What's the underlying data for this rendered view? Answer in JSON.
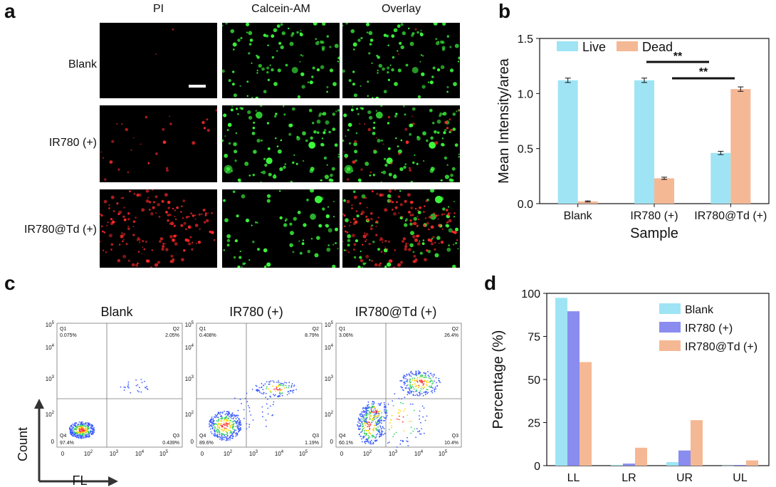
{
  "panel_labels": {
    "a": "a",
    "b": "b",
    "c": "c",
    "d": "d"
  },
  "panel_a": {
    "columns": [
      "PI",
      "Calcein-AM",
      "Overlay"
    ],
    "rows": [
      "Blank",
      "IR780 (+)",
      "IR780@Td (+)"
    ]
  },
  "colors": {
    "live": "#9ee4f5",
    "dead": "#f5b894",
    "blank": "#9ee4f5",
    "ir780": "#8a8cf0",
    "ir780td": "#f5b894",
    "green": "#3dff3d",
    "red": "#ff2a2a"
  },
  "chart_data": [
    {
      "id": "b",
      "type": "bar",
      "categories": [
        "Blank",
        "IR780 (+)",
        "IR780@Td (+)"
      ],
      "series": [
        {
          "name": "Live",
          "values": [
            1.12,
            1.12,
            0.46
          ],
          "errors": [
            0.02,
            0.02,
            0.015
          ]
        },
        {
          "name": "Dead",
          "values": [
            0.02,
            0.23,
            1.04
          ],
          "errors": [
            0.005,
            0.01,
            0.02
          ]
        }
      ],
      "ylim": [
        0,
        1.5
      ],
      "yticks": [
        "0.0",
        "0.5",
        "1.0",
        "1.5"
      ],
      "ytick_values": [
        0,
        0.5,
        1.0,
        1.5
      ],
      "xlabel": "Sample",
      "ylabel": "Mean Intensity/area",
      "annotations": [
        "**",
        "**"
      ],
      "legend": "top"
    },
    {
      "id": "c",
      "type": "scatter",
      "xlabel": "FL",
      "ylabel": "Count",
      "plots": [
        {
          "title": "Blank",
          "Q1": "0.075%",
          "Q2": "2.05%",
          "Q3": "0.439%",
          "Q4": "97.4%"
        },
        {
          "title": "IR780 (+)",
          "Q1": "0.408%",
          "Q2": "8.79%",
          "Q3": "1.19%",
          "Q4": "89.6%"
        },
        {
          "title": "IR780@Td (+)",
          "Q1": "3.06%",
          "Q2": "26.4%",
          "Q3": "10.4%",
          "Q4": "60.1%"
        }
      ],
      "quadrant_names": [
        "Q1",
        "Q2",
        "Q3",
        "Q4"
      ],
      "yticks": [
        "0",
        "10^2",
        "10^3",
        "10^4",
        "10^5"
      ],
      "xticks": [
        "0",
        "10^2",
        "10^3",
        "10^4",
        "10^5"
      ]
    },
    {
      "id": "d",
      "type": "bar",
      "categories": [
        "LL",
        "LR",
        "UR",
        "UL"
      ],
      "series": [
        {
          "name": "Blank",
          "values": [
            97.4,
            0.44,
            2.05,
            0.08
          ]
        },
        {
          "name": "IR780 (+)",
          "values": [
            89.6,
            1.19,
            8.79,
            0.41
          ]
        },
        {
          "name": "IR780@Td (+)",
          "values": [
            60.1,
            10.4,
            26.4,
            3.06
          ]
        }
      ],
      "ylim": [
        0,
        100
      ],
      "yticks": [
        "0",
        "25",
        "50",
        "75",
        "100"
      ],
      "ytick_values": [
        0,
        25,
        50,
        75,
        100
      ],
      "xlabel": "",
      "ylabel": "Percentage (%)",
      "legend": "top-right"
    }
  ]
}
